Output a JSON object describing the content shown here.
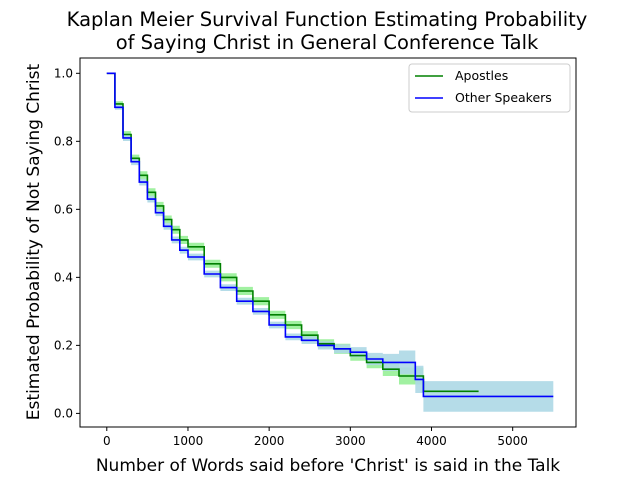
{
  "chart_data": {
    "type": "line",
    "title_lines": [
      "Kaplan Meier Survival Function Estimating Probability",
      "of Saying Christ in General Conference Talk"
    ],
    "xlabel": "Number of Words said before 'Christ' is said in the Talk",
    "ylabel": "Estimated Probability of Not Saying Christ",
    "xlim": [
      -330,
      5780
    ],
    "ylim": [
      -0.04,
      1.045
    ],
    "x_ticks": [
      0,
      1000,
      2000,
      3000,
      4000,
      5000
    ],
    "y_ticks": [
      0.0,
      0.2,
      0.4,
      0.6,
      0.8,
      1.0
    ],
    "x_tick_labels": [
      "0",
      "1000",
      "2000",
      "3000",
      "4000",
      "5000"
    ],
    "y_tick_labels": [
      "0.0",
      "0.2",
      "0.4",
      "0.6",
      "0.8",
      "1.0"
    ],
    "grid": false,
    "legend_position": "top-right",
    "series": [
      {
        "name": "Apostles",
        "color": "#008000",
        "band_color": "#90ee90",
        "x": [
          0,
          100,
          200,
          300,
          400,
          500,
          600,
          700,
          800,
          900,
          1000,
          1200,
          1400,
          1600,
          1800,
          2000,
          2200,
          2400,
          2600,
          2800,
          3000,
          3200,
          3400,
          3600,
          3750,
          3900,
          4000,
          4580
        ],
        "y": [
          1.0,
          0.91,
          0.82,
          0.75,
          0.7,
          0.65,
          0.61,
          0.57,
          0.54,
          0.51,
          0.49,
          0.44,
          0.4,
          0.36,
          0.33,
          0.29,
          0.26,
          0.23,
          0.205,
          0.19,
          0.17,
          0.15,
          0.13,
          0.11,
          0.11,
          0.065,
          0.065,
          0.065
        ],
        "band": [
          0.0,
          0.008,
          0.01,
          0.011,
          0.012,
          0.012,
          0.012,
          0.012,
          0.012,
          0.012,
          0.012,
          0.012,
          0.012,
          0.012,
          0.012,
          0.012,
          0.012,
          0.012,
          0.013,
          0.015,
          0.015,
          0.017,
          0.02,
          0.025,
          0.025,
          0.0,
          0.0,
          0.0
        ]
      },
      {
        "name": "Other Speakers",
        "color": "#0000ff",
        "band_color": "#add8e6",
        "x": [
          0,
          100,
          200,
          300,
          400,
          500,
          600,
          700,
          800,
          900,
          1000,
          1200,
          1400,
          1600,
          1800,
          2000,
          2200,
          2400,
          2600,
          2800,
          3000,
          3200,
          3400,
          3600,
          3750,
          3800,
          3900,
          4000,
          5500
        ],
        "y": [
          1.0,
          0.9,
          0.81,
          0.74,
          0.68,
          0.63,
          0.59,
          0.55,
          0.51,
          0.48,
          0.46,
          0.41,
          0.37,
          0.33,
          0.3,
          0.26,
          0.225,
          0.215,
          0.2,
          0.19,
          0.18,
          0.16,
          0.15,
          0.15,
          0.15,
          0.1,
          0.05,
          0.05,
          0.05
        ],
        "band": [
          0.0,
          0.007,
          0.009,
          0.01,
          0.01,
          0.01,
          0.01,
          0.01,
          0.01,
          0.01,
          0.01,
          0.01,
          0.01,
          0.01,
          0.01,
          0.01,
          0.01,
          0.011,
          0.012,
          0.013,
          0.015,
          0.018,
          0.025,
          0.035,
          0.035,
          0.04,
          0.045,
          0.045,
          0.045
        ]
      }
    ]
  }
}
